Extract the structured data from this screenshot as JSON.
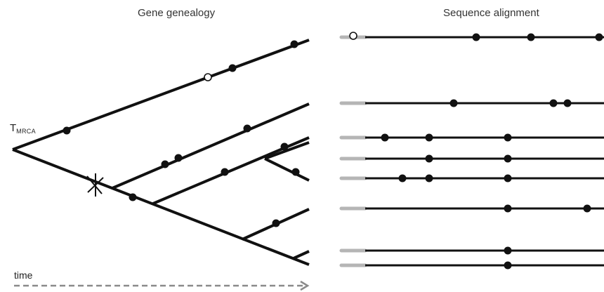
{
  "titles": {
    "genealogy": "Gene genealogy",
    "alignment": "Sequence alignment"
  },
  "tmrca": {
    "main": "T",
    "sub": "MRCA"
  },
  "time_label": "time",
  "colors": {
    "branch": "#111111",
    "stub": "#b5b5b5",
    "arrow": "#8a8a8a",
    "ancestral_marker": "#ffffff"
  },
  "icons": {
    "mutation": "filled-dot",
    "ancestral_mutation": "open-circle",
    "recombination": "star-cross"
  }
}
